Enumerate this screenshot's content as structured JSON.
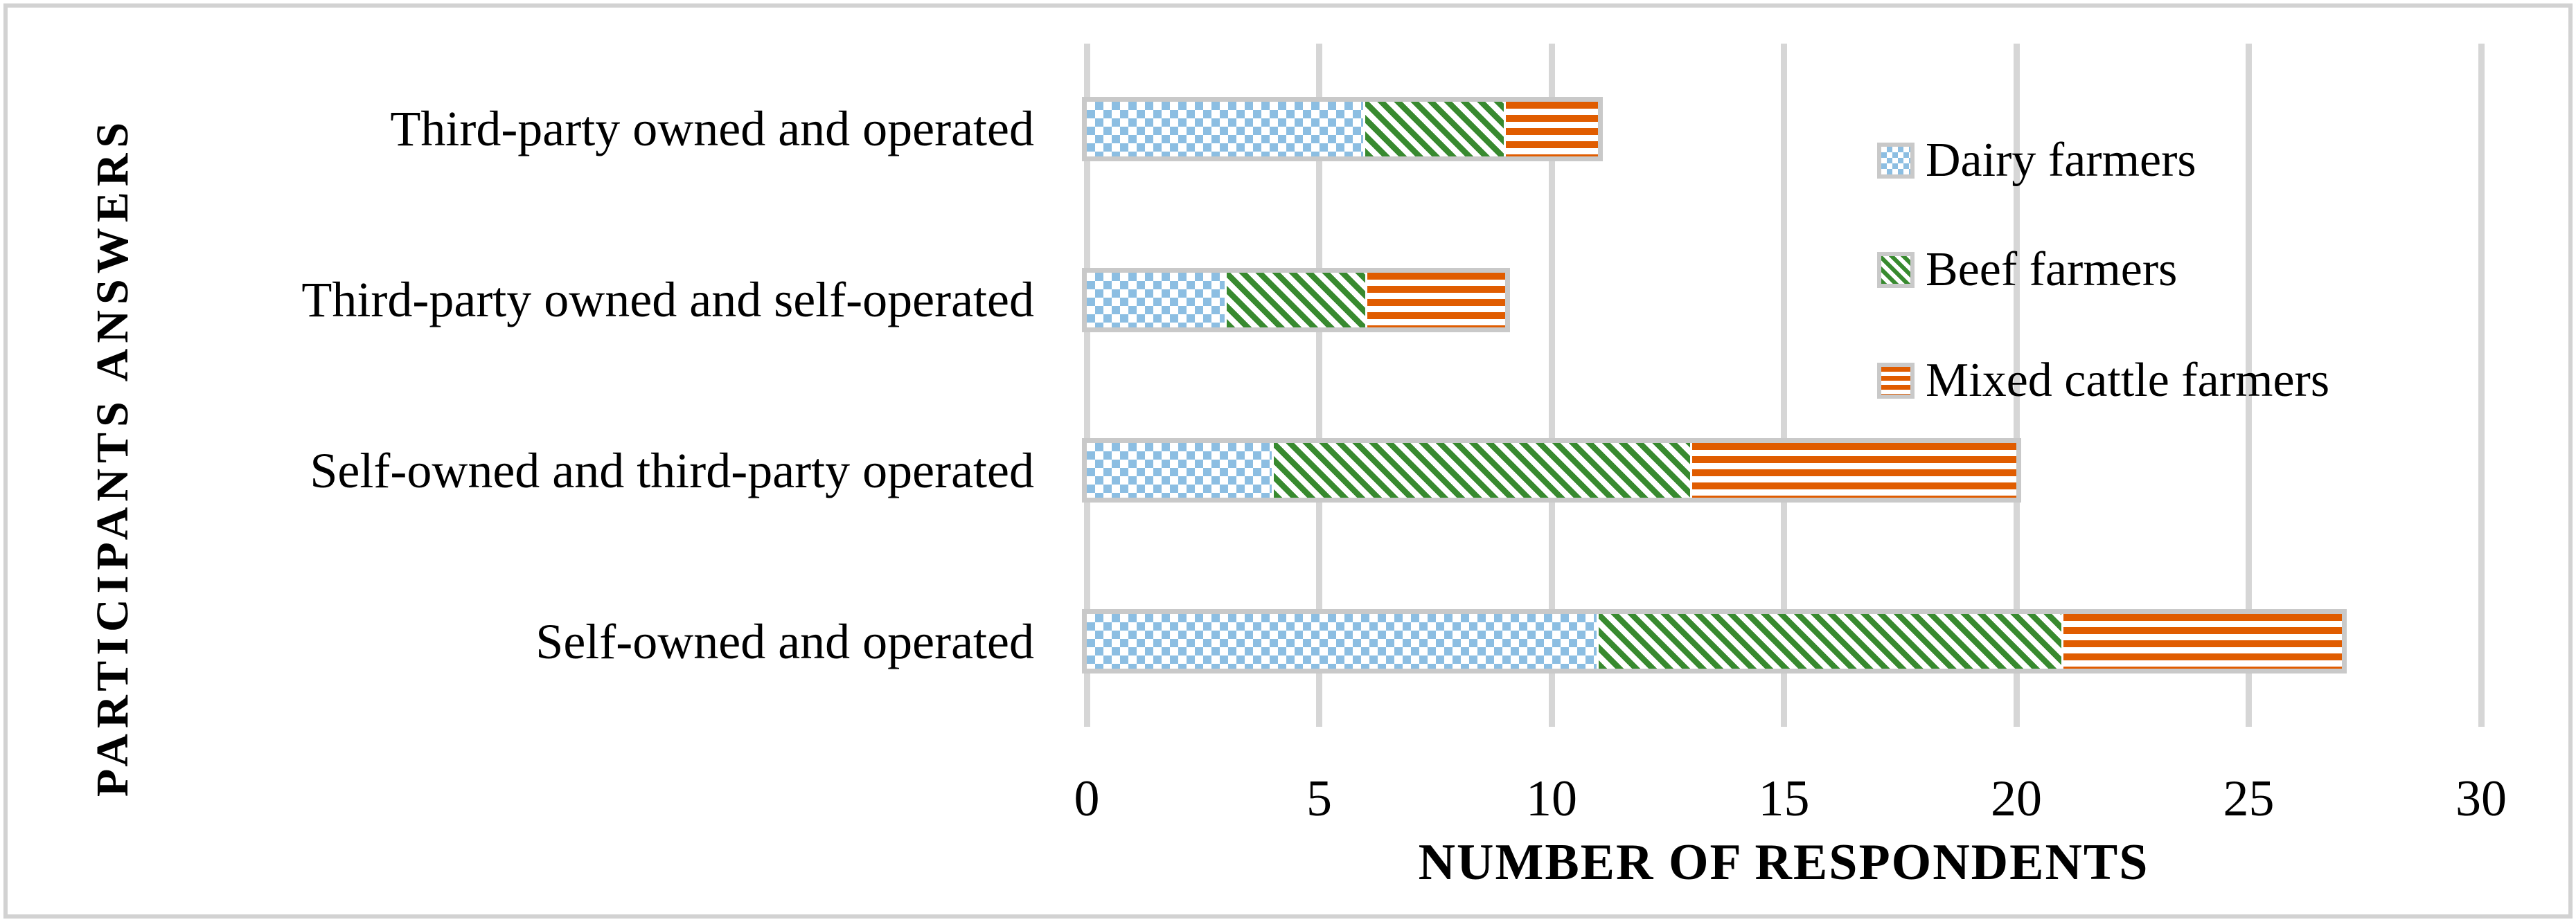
{
  "colors": {
    "dairy": "#8CBEE2",
    "beef": "#388A2F",
    "mixed": "#E05C00",
    "bar_border": "#C9C9C9",
    "gridline": "#D6D6D6",
    "frame": "#D2D2D2",
    "text": "#000000"
  },
  "chart_data": {
    "type": "bar",
    "orientation": "horizontal",
    "stacked": true,
    "xlabel": "NUMBER OF RESPONDENTS",
    "ylabel": "PARTICIPANTS ANSWERS",
    "xlim": [
      0,
      30
    ],
    "xticks": [
      0,
      5,
      10,
      15,
      20,
      25,
      30
    ],
    "grid": "vertical-gridlines-on",
    "legend_position": "right-upper",
    "categories_top_to_bottom": [
      "Third-party owned and operated",
      "Third-party owned and self-operated",
      "Self-owned and third-party operated",
      "Self-owned and operated"
    ],
    "series": [
      {
        "name": "Dairy farmers",
        "pattern": "dotted-checker",
        "values": [
          6,
          3,
          4,
          11
        ]
      },
      {
        "name": "Beef farmers",
        "pattern": "diagonal-stripes",
        "values": [
          3,
          3,
          9,
          10
        ]
      },
      {
        "name": "Mixed cattle farmers",
        "pattern": "horizontal-stripes",
        "values": [
          2,
          3,
          7,
          6
        ]
      }
    ],
    "bar_totals": [
      11,
      9,
      20,
      27
    ]
  }
}
